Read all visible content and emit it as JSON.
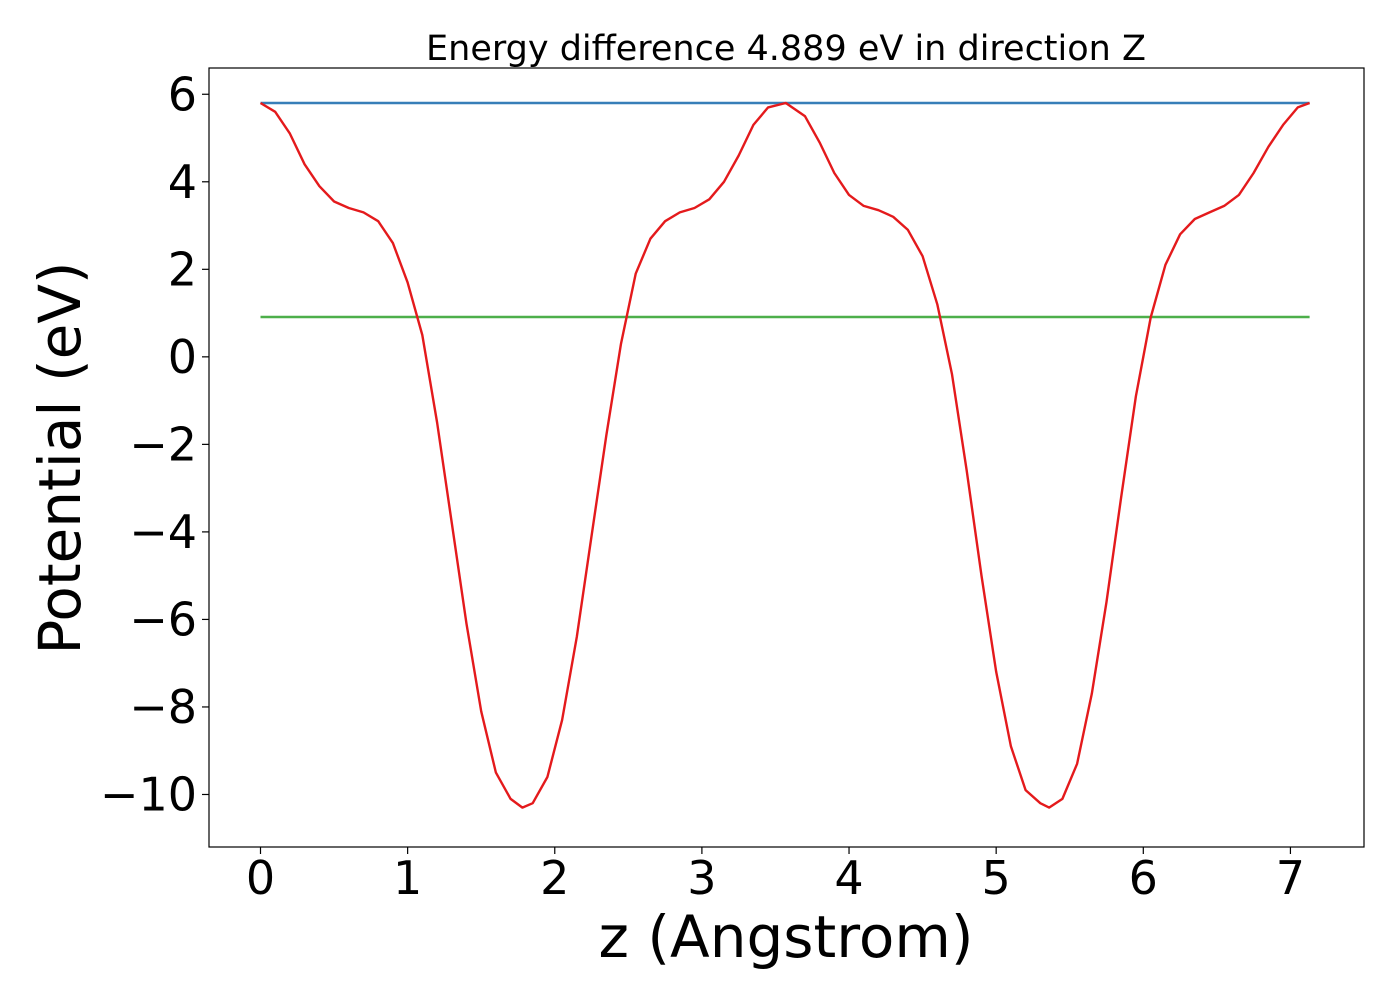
{
  "chart_data": {
    "type": "line",
    "title": "Energy difference 4.889 eV in direction Z",
    "xlabel": "z (Angstrom)",
    "ylabel": "Potential (eV)",
    "xlim": [
      -0.35,
      7.5
    ],
    "ylim": [
      -11.2,
      6.6
    ],
    "xticks": [
      0,
      1,
      2,
      3,
      4,
      5,
      6,
      7
    ],
    "xtick_labels": [
      "0",
      "1",
      "2",
      "3",
      "4",
      "5",
      "6",
      "7"
    ],
    "yticks": [
      -10,
      -8,
      -6,
      -4,
      -2,
      0,
      2,
      4,
      6
    ],
    "ytick_labels": [
      "−10",
      "−8",
      "−6",
      "−4",
      "−2",
      "0",
      "2",
      "4",
      "6"
    ],
    "grid": false,
    "legend": "none",
    "series": [
      {
        "color": "#e41a1c",
        "x": [
          0.0,
          0.1,
          0.2,
          0.3,
          0.4,
          0.5,
          0.6,
          0.7,
          0.8,
          0.9,
          1.0,
          1.1,
          1.2,
          1.3,
          1.4,
          1.5,
          1.6,
          1.7,
          1.78,
          1.85,
          1.95,
          2.05,
          2.15,
          2.25,
          2.35,
          2.45,
          2.55,
          2.65,
          2.75,
          2.85,
          2.95,
          3.05,
          3.15,
          3.25,
          3.35,
          3.45,
          3.57,
          3.7,
          3.8,
          3.9,
          4.0,
          4.1,
          4.2,
          4.3,
          4.4,
          4.5,
          4.6,
          4.7,
          4.8,
          4.9,
          5.0,
          5.1,
          5.2,
          5.3,
          5.36,
          5.45,
          5.55,
          5.65,
          5.75,
          5.85,
          5.95,
          6.05,
          6.15,
          6.25,
          6.35,
          6.45,
          6.55,
          6.65,
          6.75,
          6.85,
          6.95,
          7.05,
          7.13
        ],
        "y": [
          5.8,
          5.6,
          5.1,
          4.4,
          3.9,
          3.55,
          3.4,
          3.3,
          3.1,
          2.6,
          1.7,
          0.5,
          -1.5,
          -3.8,
          -6.1,
          -8.1,
          -9.5,
          -10.1,
          -10.3,
          -10.2,
          -9.6,
          -8.3,
          -6.4,
          -4.1,
          -1.8,
          0.3,
          1.9,
          2.7,
          3.1,
          3.3,
          3.4,
          3.6,
          4.0,
          4.6,
          5.3,
          5.7,
          5.8,
          5.5,
          4.9,
          4.2,
          3.7,
          3.45,
          3.35,
          3.2,
          2.9,
          2.3,
          1.2,
          -0.4,
          -2.6,
          -5.0,
          -7.2,
          -8.9,
          -9.9,
          -10.2,
          -10.3,
          -10.1,
          -9.3,
          -7.7,
          -5.6,
          -3.2,
          -0.9,
          0.9,
          2.1,
          2.8,
          3.15,
          3.3,
          3.45,
          3.7,
          4.2,
          4.8,
          5.3,
          5.7,
          5.8
        ]
      },
      {
        "color": "#377eb8",
        "x": [
          0.0,
          7.13
        ],
        "y": [
          5.8,
          5.8
        ]
      },
      {
        "color": "#4daf4a",
        "x": [
          0.0,
          7.13
        ],
        "y": [
          0.91,
          0.91
        ]
      }
    ]
  }
}
